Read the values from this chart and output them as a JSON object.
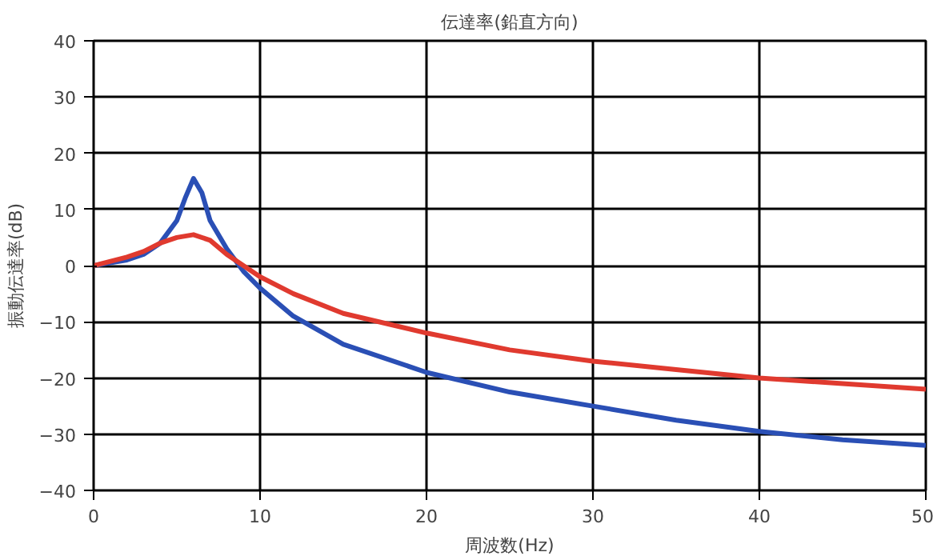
{
  "chart_data": {
    "type": "line",
    "title": "伝達率(鉛直方向)",
    "xlabel": "周波数(Hz)",
    "ylabel": "振動伝達率(dB)",
    "xlim": [
      0,
      50
    ],
    "ylim": [
      -40,
      40
    ],
    "xticks": [
      0,
      10,
      20,
      30,
      40,
      50
    ],
    "yticks": [
      -40,
      -30,
      -20,
      -10,
      0,
      10,
      20,
      30,
      40
    ],
    "grid": true,
    "marker": "none",
    "line_style": "solid",
    "series": [
      {
        "color": "#2a4fb5",
        "x": [
          0,
          2,
          3,
          4,
          5,
          5.5,
          6,
          6.5,
          7,
          8,
          9,
          10,
          12,
          15,
          20,
          25,
          30,
          35,
          40,
          45,
          50
        ],
        "values": [
          0,
          1,
          2,
          4,
          8,
          12,
          15.5,
          13,
          8,
          3,
          -1,
          -4,
          -9,
          -14,
          -19,
          -22.5,
          -25,
          -27.5,
          -29.5,
          -31,
          -32
        ]
      },
      {
        "color": "#e03a2f",
        "x": [
          0,
          2,
          3,
          4,
          5,
          6,
          7,
          8,
          9,
          10,
          12,
          15,
          20,
          25,
          30,
          35,
          40,
          45,
          50
        ],
        "values": [
          0,
          1.5,
          2.5,
          4,
          5,
          5.5,
          4.5,
          2,
          0,
          -2,
          -5,
          -8.5,
          -12,
          -15,
          -17,
          -18.5,
          -20,
          -21,
          -22
        ]
      }
    ]
  }
}
